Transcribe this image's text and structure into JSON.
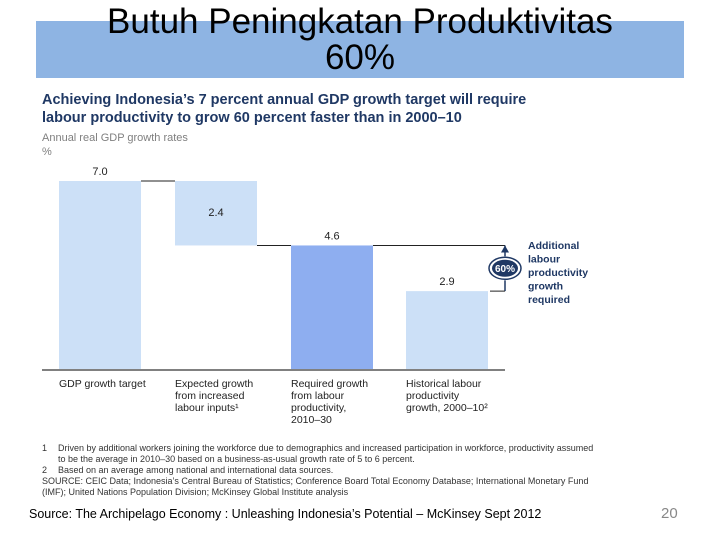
{
  "slide": {
    "title_line1": "Butuh Peningkatan Produktivitas",
    "title_line2": "60%",
    "page_number": "20",
    "source": "Source: The Archipelago Economy : Unleashing Indonesia’s Potential – McKinsey Sept 2012"
  },
  "exhibit": {
    "heading_line1": "Achieving Indonesia’s 7 percent annual GDP growth target will require",
    "heading_line2": "labour productivity to grow 60 percent faster than in 2000–10",
    "axis_title_line1": "Annual real GDP growth rates",
    "axis_title_line2": "%",
    "footnotes": [
      {
        "num": "1",
        "text": "Driven by additional workers joining the workforce due to demographics and increased participation in workforce, productivity assumed to be the average in 2010–30 based on a business-as-usual growth rate of 5 to 6 percent."
      },
      {
        "num": "2",
        "text": "Based on an average among national and international data sources."
      },
      {
        "num": "",
        "text": "SOURCE: CEIC Data; Indonesia’s Central Bureau of Statistics; Conference Board Total Economy Database; International Monetary Fund (IMF); United Nations Population Division; McKinsey Global Institute analysis"
      }
    ]
  },
  "chart_data": {
    "type": "bar",
    "subtype": "waterfall",
    "ylabel": "Annual real GDP growth rates, %",
    "categories": [
      [
        "GDP growth target"
      ],
      [
        "Expected growth",
        "from increased",
        "labour inputs¹"
      ],
      [
        "Required growth",
        "from labour",
        "productivity,",
        "2010–30"
      ],
      [
        "Historical labour",
        "productivity",
        "growth, 2000–10²"
      ]
    ],
    "values": [
      7.0,
      2.4,
      4.6,
      2.9
    ],
    "value_labels": [
      "7.0",
      "2.4",
      "4.6",
      "2.9"
    ],
    "bar_ranges": [
      [
        0,
        7.0
      ],
      [
        4.6,
        7.0
      ],
      [
        0,
        4.6
      ],
      [
        0,
        2.9
      ]
    ],
    "ylim": [
      0,
      7.0
    ],
    "colors": [
      "#cce0f7",
      "#cce0f7",
      "#8eaef0",
      "#cce0f7"
    ],
    "annotation": {
      "badge": "60%",
      "text": [
        "Additional",
        "labour",
        "productivity",
        "growth",
        "required"
      ],
      "color": "#1f3864"
    },
    "grid": false,
    "legend": "none"
  }
}
